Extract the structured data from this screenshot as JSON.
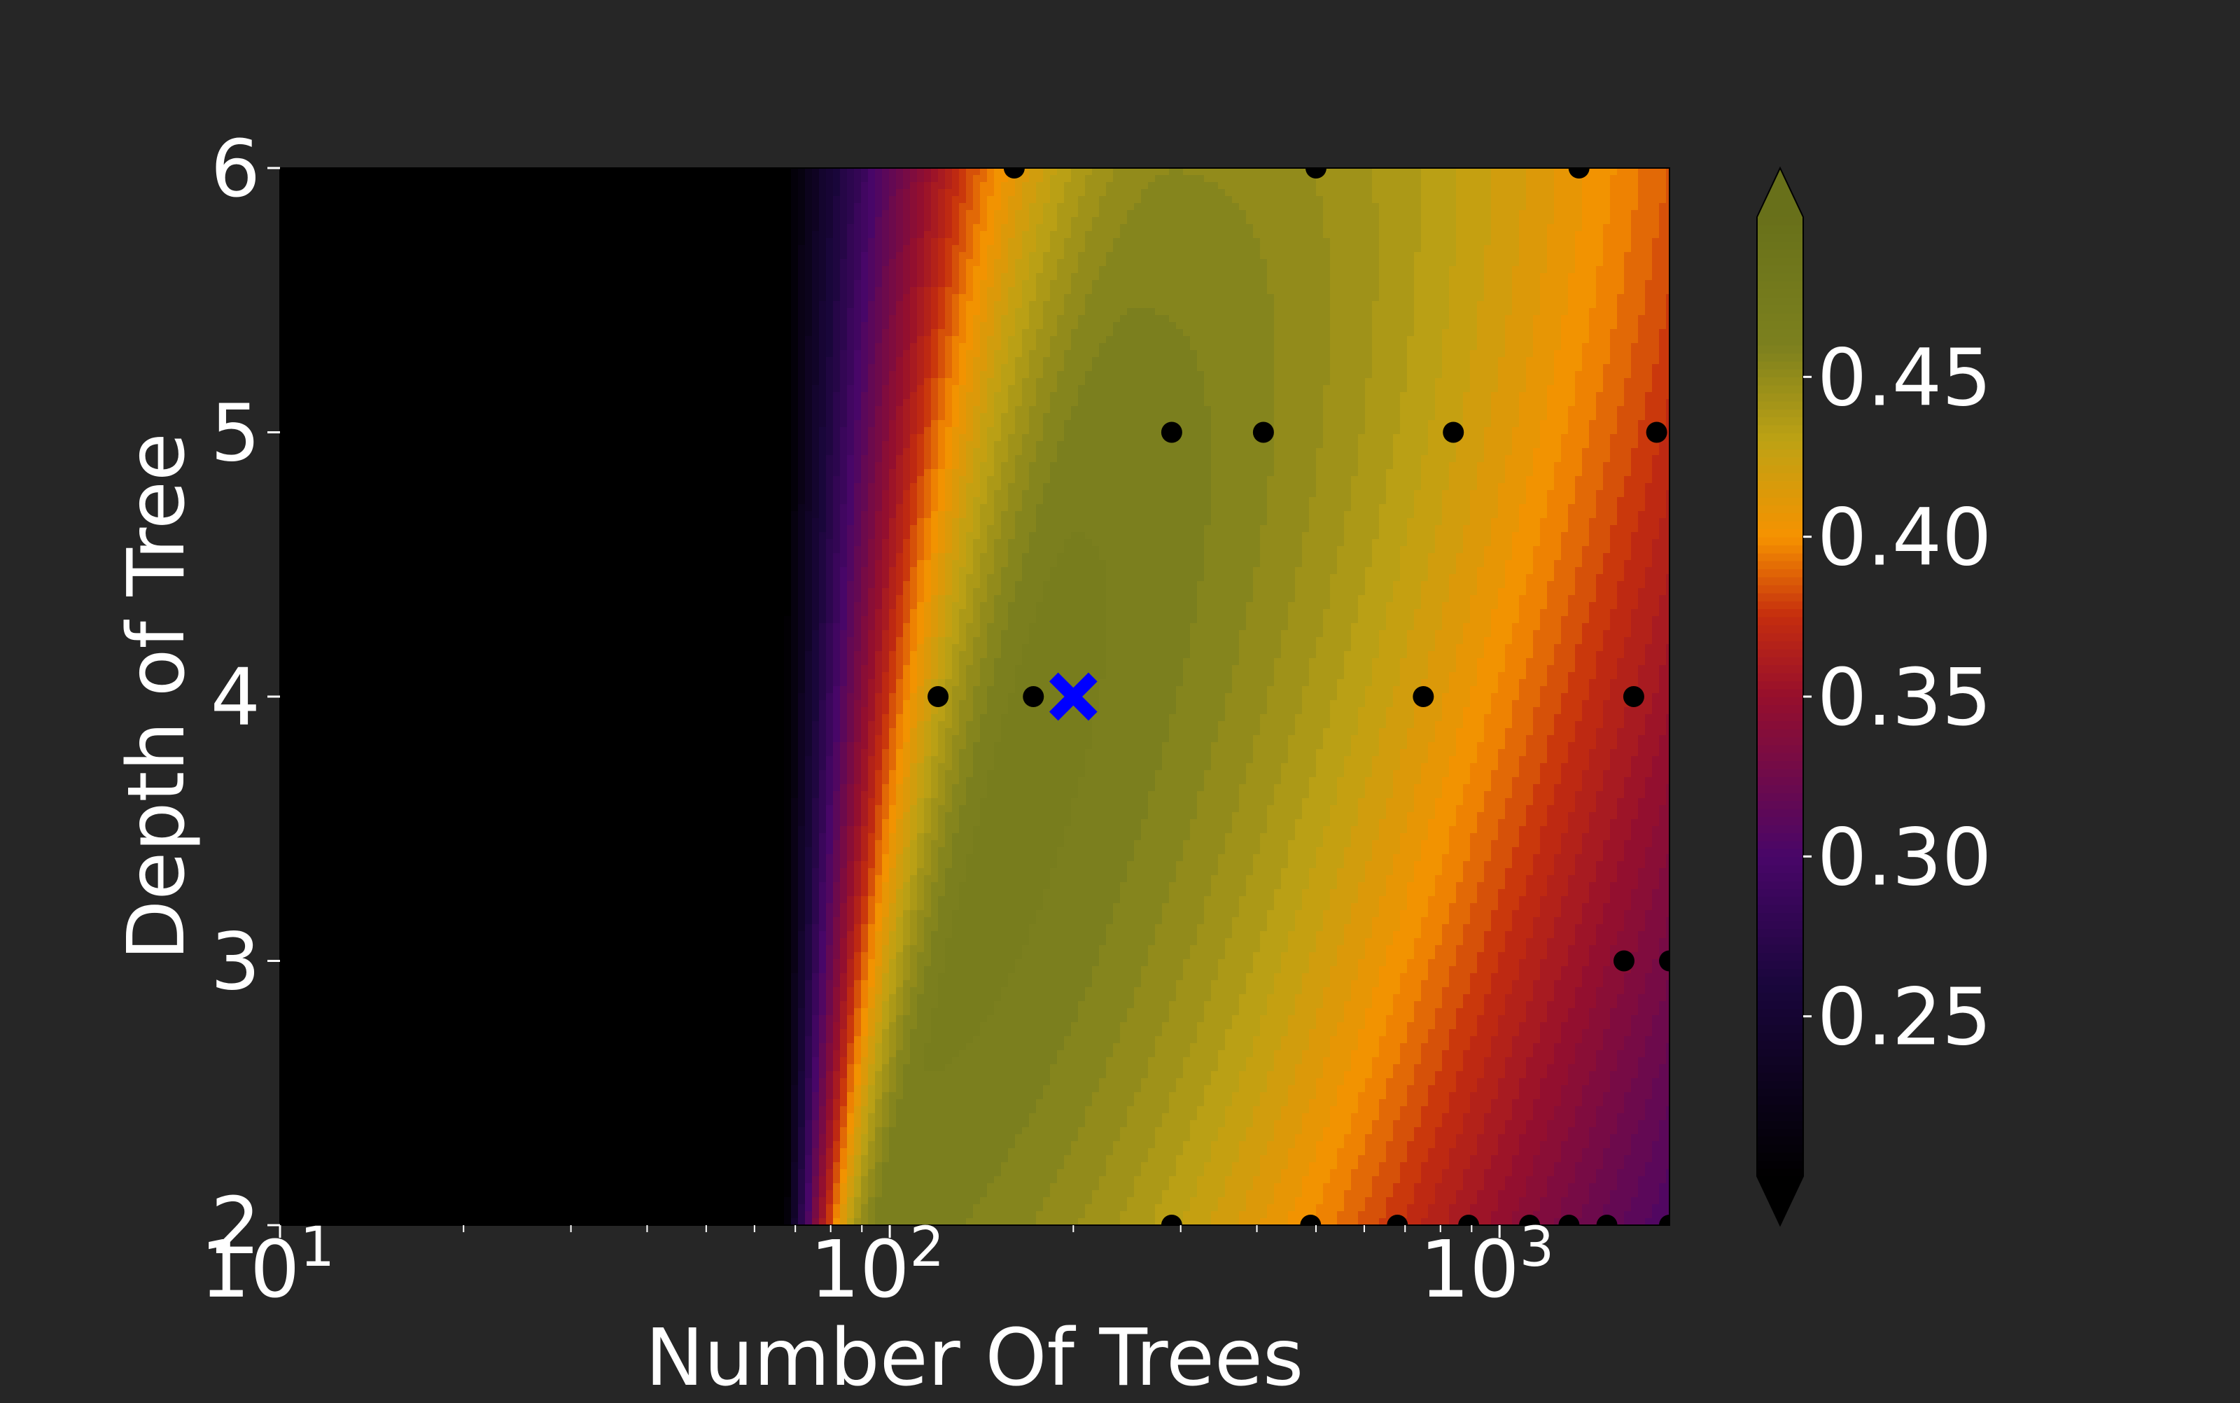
{
  "chart_data": {
    "type": "heatmap",
    "title": "",
    "xlabel": "Number Of Trees",
    "ylabel": "Depth of Tree",
    "xscale": "log",
    "xlim": [
      10,
      1900
    ],
    "ylim": [
      2,
      6
    ],
    "x_ticks": [
      {
        "value": 10,
        "base": "10",
        "exp": "1"
      },
      {
        "value": 100,
        "base": "10",
        "exp": "2"
      },
      {
        "value": 1000,
        "base": "10",
        "exp": "3"
      }
    ],
    "y_ticks": [
      {
        "value": 2,
        "label": "2"
      },
      {
        "value": 3,
        "label": "3"
      },
      {
        "value": 4,
        "label": "4"
      },
      {
        "value": 5,
        "label": "5"
      },
      {
        "value": 6,
        "label": "6"
      }
    ],
    "colorbar": {
      "range": [
        0.2,
        0.5
      ],
      "ticks": [
        {
          "value": 0.25,
          "label": "0.25"
        },
        {
          "value": 0.3,
          "label": "0.30"
        },
        {
          "value": 0.35,
          "label": "0.35"
        },
        {
          "value": 0.4,
          "label": "0.40"
        },
        {
          "value": 0.45,
          "label": "0.45"
        }
      ],
      "extend": "both"
    },
    "surface": {
      "peak": {
        "x": 200,
        "y": 4,
        "value": 0.47
      },
      "min_value": 0.2
    },
    "samples": [
      {
        "x": 10,
        "y": 6
      },
      {
        "x": 160,
        "y": 6
      },
      {
        "x": 500,
        "y": 6
      },
      {
        "x": 1350,
        "y": 6
      },
      {
        "x": 290,
        "y": 5
      },
      {
        "x": 410,
        "y": 5
      },
      {
        "x": 840,
        "y": 5
      },
      {
        "x": 1810,
        "y": 5
      },
      {
        "x": 10,
        "y": 4
      },
      {
        "x": 120,
        "y": 4
      },
      {
        "x": 172,
        "y": 4
      },
      {
        "x": 750,
        "y": 4
      },
      {
        "x": 1660,
        "y": 4
      },
      {
        "x": 10,
        "y": 3
      },
      {
        "x": 1600,
        "y": 3
      },
      {
        "x": 1900,
        "y": 3
      },
      {
        "x": 290,
        "y": 2
      },
      {
        "x": 490,
        "y": 2
      },
      {
        "x": 680,
        "y": 2
      },
      {
        "x": 890,
        "y": 2
      },
      {
        "x": 1120,
        "y": 2
      },
      {
        "x": 1300,
        "y": 2
      },
      {
        "x": 1500,
        "y": 2
      },
      {
        "x": 1900,
        "y": 2
      }
    ],
    "best": {
      "x": 200,
      "y": 4
    },
    "colors": {
      "background": "#262626",
      "text": "#ffffff",
      "sample_point": "#000000",
      "best_marker": "#0000ff"
    }
  }
}
